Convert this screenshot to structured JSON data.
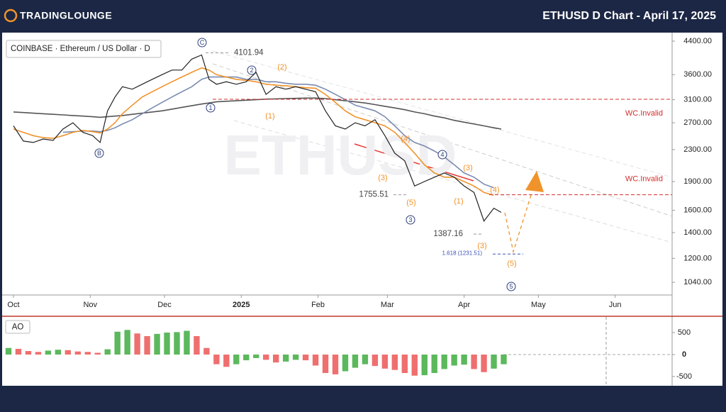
{
  "header": {
    "logo": "TRADINGLOUNGE",
    "title": "ETHUSD D Chart - April 17, 2025"
  },
  "chart_data": [
    {
      "type": "line",
      "watermark": "ETHUSD",
      "log_scale": true,
      "grid": false,
      "xlim": [
        -4,
        266
      ],
      "ylim": [
        964,
        4590
      ],
      "xticks": [
        {
          "value": 0,
          "label": "Oct"
        },
        {
          "value": 31,
          "label": "Nov"
        },
        {
          "value": 61,
          "label": "Dec"
        },
        {
          "value": 92,
          "label": "2025"
        },
        {
          "value": 123,
          "label": "Feb"
        },
        {
          "value": 151,
          "label": "Mar"
        },
        {
          "value": 182,
          "label": "Apr"
        },
        {
          "value": 212,
          "label": "May"
        },
        {
          "value": 243,
          "label": "Jun"
        }
      ],
      "yticks": [
        {
          "value": 1040,
          "label": "1040.00"
        },
        {
          "value": 1200,
          "label": "1200.00"
        },
        {
          "value": 1400,
          "label": "1400.00"
        },
        {
          "value": 1600,
          "label": "1600.00"
        },
        {
          "value": 1900,
          "label": "1900.00"
        },
        {
          "value": 2300,
          "label": "2300.00"
        },
        {
          "value": 2700,
          "label": "2700.00"
        },
        {
          "value": 3100,
          "label": "3100.00"
        },
        {
          "value": 3600,
          "label": "3600.00"
        },
        {
          "value": 4400,
          "label": "4400.00"
        }
      ],
      "x": [
        0,
        4,
        8,
        12,
        16,
        20,
        24,
        28,
        32,
        35,
        38,
        41,
        44,
        48,
        52,
        56,
        60,
        64,
        68,
        72,
        76,
        79,
        82,
        86,
        90,
        94,
        98,
        102,
        106,
        110,
        114,
        118,
        122,
        126,
        130,
        134,
        138,
        142,
        146,
        150,
        154,
        158,
        162,
        166,
        170,
        174,
        178,
        182,
        186,
        190,
        194,
        197
      ],
      "series": [
        {
          "name": "COINBASE · Ethereum / US Dollar · D",
          "color": "#222222",
          "values": [
            2650,
            2420,
            2400,
            2450,
            2430,
            2600,
            2700,
            2550,
            2500,
            2400,
            2900,
            3150,
            3350,
            3300,
            3400,
            3500,
            3600,
            3700,
            3700,
            3950,
            4050,
            3500,
            3400,
            3450,
            3400,
            3450,
            3650,
            3200,
            3350,
            3300,
            3350,
            3300,
            3250,
            2900,
            2650,
            2600,
            2700,
            2650,
            2750,
            2500,
            2250,
            2150,
            1850,
            1900,
            1950,
            2000,
            1950,
            1850,
            1780,
            1500,
            1620,
            1580
          ]
        },
        {
          "color": "#f0932b",
          "values": [
            2600,
            2550,
            2500,
            2470,
            2460,
            2500,
            2550,
            2580,
            2560,
            2540,
            2600,
            2700,
            2850,
            3000,
            3150,
            3250,
            3350,
            3450,
            3550,
            3650,
            3750,
            3700,
            3600,
            3550,
            3500,
            3480,
            3450,
            3400,
            3380,
            3370,
            3350,
            3330,
            3320,
            3200,
            3050,
            2900,
            2800,
            2750,
            2700,
            2650,
            2550,
            2400,
            2250,
            2100,
            2000,
            1950,
            1950,
            1900,
            1850,
            1780,
            1750,
            null
          ]
        },
        {
          "color": "#7b8bb0",
          "values": [
            null,
            null,
            null,
            null,
            null,
            2550,
            2560,
            2570,
            2570,
            2560,
            2580,
            2620,
            2680,
            2750,
            2850,
            2950,
            3050,
            3150,
            3250,
            3350,
            3500,
            3550,
            3550,
            3550,
            3550,
            3500,
            3500,
            3450,
            3450,
            3420,
            3400,
            3400,
            3380,
            3300,
            3200,
            3100,
            3000,
            2950,
            2900,
            2800,
            2650,
            2500,
            2400,
            2350,
            2280,
            2200,
            2100,
            2000,
            1950,
            1870,
            1830,
            null
          ]
        },
        {
          "color": "#555555",
          "values": [
            2880,
            2870,
            2860,
            2850,
            2840,
            2830,
            2820,
            2810,
            2800,
            2790,
            2800,
            2810,
            2820,
            2840,
            2860,
            2880,
            2900,
            2930,
            2960,
            2990,
            3020,
            3040,
            3060,
            3070,
            3080,
            3090,
            3100,
            3110,
            3115,
            3120,
            3125,
            3130,
            3130,
            3120,
            3100,
            3080,
            3060,
            3040,
            3010,
            2980,
            2950,
            2920,
            2880,
            2850,
            2810,
            2780,
            2740,
            2710,
            2680,
            2650,
            2620,
            2600
          ]
        }
      ],
      "levels": [
        {
          "value": 3107,
          "label": "WC.Invalid",
          "color": "#d32f2f"
        },
        {
          "value": 1755.51,
          "label": "WC.Invalid",
          "color": "#d32f2f"
        }
      ],
      "price_marks": [
        4101.94,
        1755.51,
        1387.16,
        {
          "value": 1231.51,
          "label": "1.618 (1231.51)"
        }
      ],
      "wave_labels": [
        {
          "text": "C",
          "style": "circle"
        },
        {
          "text": "2",
          "style": "circle"
        },
        {
          "text": "1",
          "style": "circle"
        },
        {
          "text": "B",
          "style": "circle"
        },
        {
          "text": "3",
          "style": "circle"
        },
        {
          "text": "4",
          "style": "circle"
        },
        {
          "text": "5",
          "style": "circle"
        },
        {
          "text": "(2)",
          "style": "paren"
        },
        {
          "text": "(1)",
          "style": "paren"
        },
        {
          "text": "(4)",
          "style": "paren"
        },
        {
          "text": "(3)",
          "style": "paren"
        },
        {
          "text": "(5)",
          "style": "paren"
        },
        {
          "text": "(3)",
          "style": "paren"
        },
        {
          "text": "(1)",
          "style": "paren"
        },
        {
          "text": "(4)",
          "style": "paren"
        },
        {
          "text": "(3)",
          "style": "paren"
        },
        {
          "text": "(5)",
          "style": "paren"
        }
      ]
    },
    {
      "type": "bar",
      "title": "AO",
      "xlim": [
        -4,
        266
      ],
      "ylim": [
        -694,
        855
      ],
      "yticks": [
        -500,
        0,
        500
      ],
      "up_color": "#5cb85c",
      "down_color": "#ef6f6f",
      "x": [
        -2,
        2,
        6,
        10,
        14,
        18,
        22,
        26,
        30,
        34,
        38,
        42,
        46,
        50,
        54,
        58,
        62,
        66,
        70,
        74,
        78,
        82,
        86,
        90,
        94,
        98,
        102,
        106,
        110,
        114,
        118,
        122,
        126,
        130,
        134,
        138,
        142,
        146,
        150,
        154,
        158,
        162,
        166,
        170,
        174,
        178,
        182,
        186,
        190,
        194,
        198
      ],
      "values": [
        150,
        130,
        80,
        60,
        90,
        110,
        100,
        70,
        60,
        40,
        120,
        520,
        560,
        480,
        420,
        470,
        500,
        510,
        540,
        420,
        150,
        -220,
        -280,
        -220,
        -130,
        -80,
        -120,
        -180,
        -160,
        -120,
        -130,
        -250,
        -420,
        -450,
        -380,
        -300,
        -220,
        -260,
        -320,
        -350,
        -420,
        -480,
        -470,
        -420,
        -330,
        -250,
        -230,
        -330,
        -400,
        -320,
        -220
      ]
    }
  ]
}
